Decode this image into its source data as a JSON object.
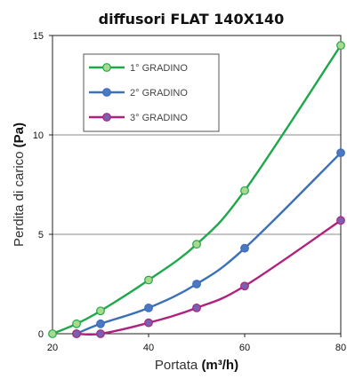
{
  "chart_data": {
    "type": "line",
    "title": "diffusori FLAT 140X140",
    "xlabel": {
      "text": "Portata ",
      "bold": "(m³/h)"
    },
    "ylabel": {
      "text": "Perdita di carico ",
      "bold": "(Pa)"
    },
    "xlim": [
      20,
      80
    ],
    "ylim": [
      0,
      15
    ],
    "xticks": [
      20,
      40,
      60,
      80
    ],
    "yticks": [
      0,
      5,
      10,
      15
    ],
    "grid": "horizontal",
    "legend_position": "top-left",
    "series": [
      {
        "name": "1° GRADINO",
        "color": "#1fa84a",
        "marker_fill": "#a8d98f",
        "points": [
          [
            20,
            0.0
          ],
          [
            25,
            0.5
          ],
          [
            30,
            1.15
          ],
          [
            40,
            2.7
          ],
          [
            50,
            4.5
          ],
          [
            60,
            7.2
          ],
          [
            80,
            14.5
          ]
        ]
      },
      {
        "name": "2° GRADINO",
        "color": "#3b6fb8",
        "marker_fill": "#4a78c4",
        "points": [
          [
            25,
            0.0
          ],
          [
            30,
            0.5
          ],
          [
            40,
            1.3
          ],
          [
            50,
            2.5
          ],
          [
            60,
            4.3
          ],
          [
            80,
            9.1
          ]
        ]
      },
      {
        "name": "3° GRADINO",
        "color": "#b0217e",
        "marker_fill": "#7a5fb0",
        "points": [
          [
            25,
            0.0
          ],
          [
            30,
            0.0
          ],
          [
            40,
            0.55
          ],
          [
            50,
            1.3
          ],
          [
            60,
            2.4
          ],
          [
            80,
            5.7
          ]
        ]
      }
    ]
  }
}
